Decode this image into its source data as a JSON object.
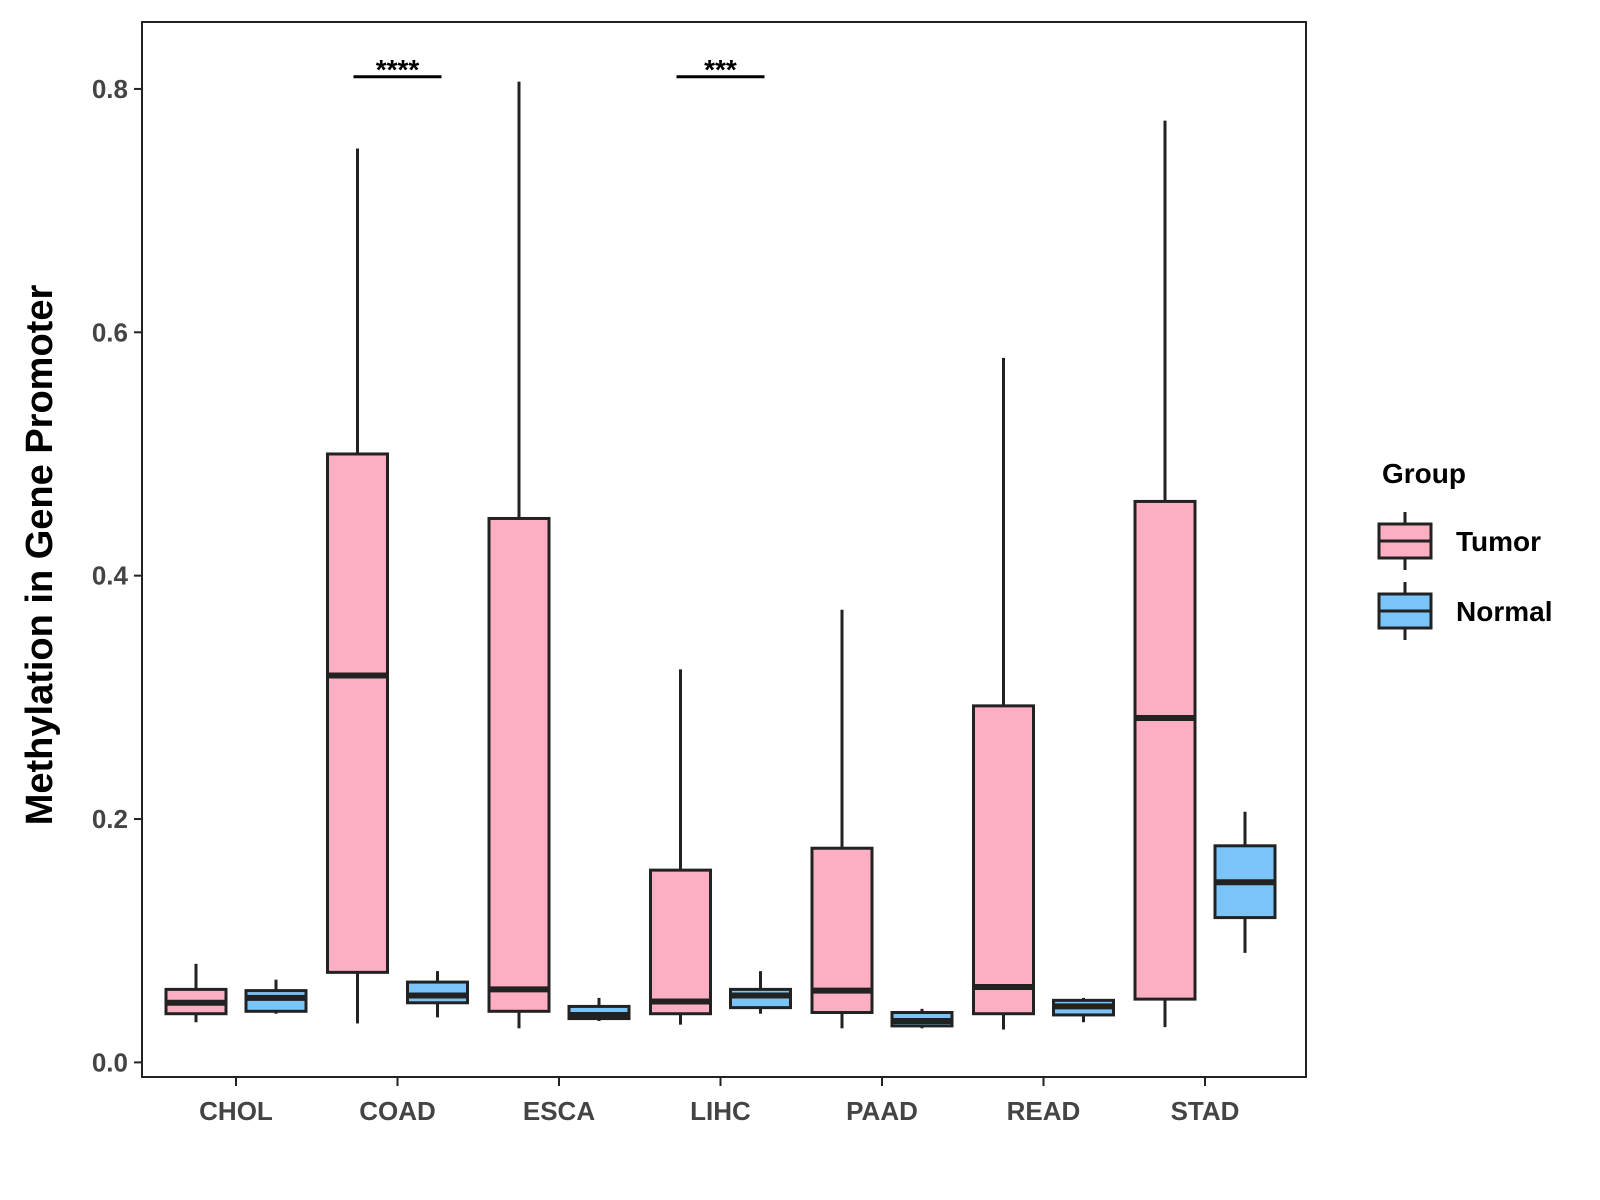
{
  "chart_data": {
    "type": "boxplot",
    "title": "",
    "xlabel": "",
    "ylabel": "Methylation in Gene Promoter",
    "ylim": [
      -0.012,
      0.855
    ],
    "yticks": [
      "0.0",
      "0.2",
      "0.4",
      "0.6",
      "0.8"
    ],
    "ytick_values": [
      0.0,
      0.2,
      0.4,
      0.6,
      0.8
    ],
    "grid": false,
    "categories": [
      "CHOL",
      "COAD",
      "ESCA",
      "LIHC",
      "PAAD",
      "READ",
      "STAD"
    ],
    "legend": {
      "title": "Group",
      "position": "right",
      "items": [
        {
          "label": "Tumor",
          "color": "#FCAFC2"
        },
        {
          "label": "Normal",
          "color": "#7AC4F8"
        }
      ]
    },
    "series": [
      {
        "name": "Tumor",
        "color": "#FCAFC2",
        "boxes": [
          {
            "category": "CHOL",
            "min": 0.033,
            "q1": 0.04,
            "median": 0.049,
            "q3": 0.06,
            "max": 0.081
          },
          {
            "category": "COAD",
            "min": 0.032,
            "q1": 0.074,
            "median": 0.318,
            "q3": 0.5,
            "max": 0.751
          },
          {
            "category": "ESCA",
            "min": 0.028,
            "q1": 0.042,
            "median": 0.06,
            "q3": 0.447,
            "max": 0.806
          },
          {
            "category": "LIHC",
            "min": 0.031,
            "q1": 0.04,
            "median": 0.05,
            "q3": 0.158,
            "max": 0.323
          },
          {
            "category": "PAAD",
            "min": 0.028,
            "q1": 0.041,
            "median": 0.059,
            "q3": 0.176,
            "max": 0.372
          },
          {
            "category": "READ",
            "min": 0.027,
            "q1": 0.04,
            "median": 0.062,
            "q3": 0.293,
            "max": 0.579
          },
          {
            "category": "STAD",
            "min": 0.029,
            "q1": 0.052,
            "median": 0.283,
            "q3": 0.461,
            "max": 0.774
          }
        ]
      },
      {
        "name": "Normal",
        "color": "#7AC4F8",
        "boxes": [
          {
            "category": "CHOL",
            "min": 0.04,
            "q1": 0.042,
            "median": 0.053,
            "q3": 0.059,
            "max": 0.068
          },
          {
            "category": "COAD",
            "min": 0.037,
            "q1": 0.049,
            "median": 0.055,
            "q3": 0.066,
            "max": 0.075
          },
          {
            "category": "ESCA",
            "min": 0.034,
            "q1": 0.036,
            "median": 0.039,
            "q3": 0.046,
            "max": 0.053
          },
          {
            "category": "LIHC",
            "min": 0.04,
            "q1": 0.045,
            "median": 0.055,
            "q3": 0.06,
            "max": 0.075
          },
          {
            "category": "PAAD",
            "min": 0.028,
            "q1": 0.03,
            "median": 0.034,
            "q3": 0.041,
            "max": 0.044
          },
          {
            "category": "READ",
            "min": 0.033,
            "q1": 0.039,
            "median": 0.046,
            "q3": 0.051,
            "max": 0.053
          },
          {
            "category": "STAD",
            "min": 0.09,
            "q1": 0.119,
            "median": 0.148,
            "q3": 0.178,
            "max": 0.206
          }
        ]
      }
    ],
    "annotations": [
      {
        "category": "COAD",
        "label": "****",
        "y": 0.81
      },
      {
        "category": "LIHC",
        "label": "***",
        "y": 0.81
      }
    ]
  }
}
